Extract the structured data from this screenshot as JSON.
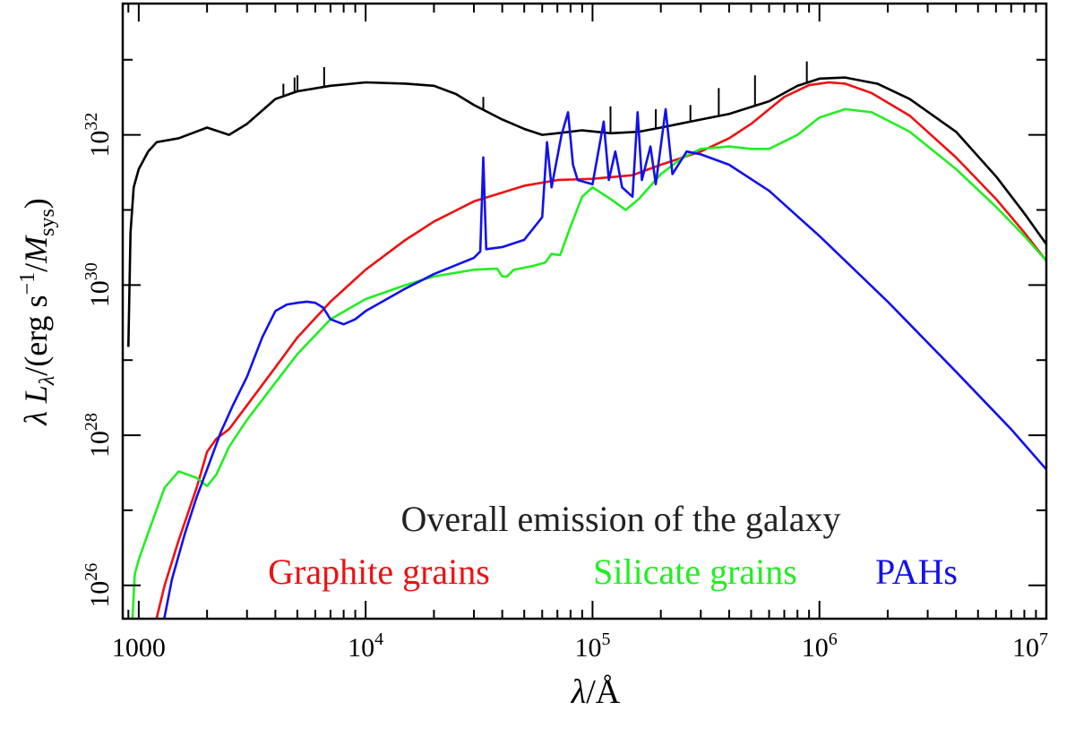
{
  "chart_data": {
    "type": "line",
    "title": "",
    "xlabel": {
      "sym": "λ",
      "unit": "Å"
    },
    "ylabel": {
      "sym": "λ",
      "L": "L",
      "sub": "λ",
      "mid": "/(erg s",
      "exp": "−1",
      "end": "/",
      "M": "M",
      "msub": "sys",
      "close": ")"
    },
    "xscale": "log",
    "yscale": "log",
    "xlim": [
      850,
      10000000
    ],
    "ylim": [
      3.6e+25,
      5.6e+33
    ],
    "grid": false,
    "x_ticks": [
      {
        "value": 1000,
        "label": "1000"
      },
      {
        "value": 10000,
        "base": "10",
        "exp": "4"
      },
      {
        "value": 100000,
        "base": "10",
        "exp": "5"
      },
      {
        "value": 1000000,
        "base": "10",
        "exp": "6"
      },
      {
        "value": 10000000,
        "base": "10",
        "exp": "7"
      }
    ],
    "y_ticks": [
      {
        "value": 1e+26,
        "base": "10",
        "exp": "26"
      },
      {
        "value": 1e+28,
        "base": "10",
        "exp": "28"
      },
      {
        "value": 1e+30,
        "base": "10",
        "exp": "30"
      },
      {
        "value": 1e+32,
        "base": "10",
        "exp": "32"
      }
    ],
    "series": [
      {
        "name": "Overall emission of the galaxy",
        "color": "#000000",
        "width": 2.6,
        "points": [
          [
            900,
            1.5e+29
          ],
          [
            920,
            5e+30
          ],
          [
            950,
            2e+31
          ],
          [
            1000,
            3.5e+31
          ],
          [
            1100,
            6e+31
          ],
          [
            1200,
            8e+31
          ],
          [
            1500,
            9e+31
          ],
          [
            2000,
            1.25e+32
          ],
          [
            2500,
            1e+32
          ],
          [
            3000,
            1.4e+32
          ],
          [
            4000,
            3e+32
          ],
          [
            5000,
            3.8e+32
          ],
          [
            7000,
            4.5e+32
          ],
          [
            10000,
            5e+32
          ],
          [
            15000,
            4.8e+32
          ],
          [
            20000,
            4.5e+32
          ],
          [
            25000,
            3.5e+32
          ],
          [
            30000,
            2.5e+32
          ],
          [
            40000,
            1.6e+32
          ],
          [
            50000,
            1.2e+32
          ],
          [
            60000,
            1e+32
          ],
          [
            70000,
            1.05e+32
          ],
          [
            90000,
            1.15e+32
          ],
          [
            120000,
            1.05e+32
          ],
          [
            160000,
            1.1e+32
          ],
          [
            200000,
            1.25e+32
          ],
          [
            300000,
            1.6e+32
          ],
          [
            400000,
            1.9e+32
          ],
          [
            600000,
            2.8e+32
          ],
          [
            800000,
            4.5e+32
          ],
          [
            1000000,
            5.6e+32
          ],
          [
            1300000,
            5.8e+32
          ],
          [
            1800000,
            4.8e+32
          ],
          [
            2500000,
            3e+32
          ],
          [
            4000000,
            1.1e+32
          ],
          [
            6000000,
            2.8e+31
          ],
          [
            8000000,
            9e+30
          ],
          [
            10000000,
            3.5e+30
          ]
        ],
        "spikes": [
          [
            6563,
            8e+32
          ],
          [
            4861,
            5.8e+32
          ],
          [
            5007,
            6.2e+32
          ],
          [
            4340,
            4.8e+32
          ],
          [
            33000,
            3.2e+32
          ],
          [
            120000,
            2.4e+32
          ],
          [
            190000,
            2.2e+32
          ],
          [
            270000,
            2.5e+32
          ],
          [
            360000,
            4.2e+32
          ],
          [
            520000,
            6.2e+32
          ],
          [
            880000,
            9.5e+32
          ]
        ]
      },
      {
        "name": "Graphite grains",
        "color": "#ee1111",
        "width": 2.6,
        "points": [
          [
            1180,
            3e+25
          ],
          [
            1300,
            1e+26
          ],
          [
            1500,
            4e+26
          ],
          [
            1800,
            2e+27
          ],
          [
            2000,
            6e+27
          ],
          [
            2200,
            9e+27
          ],
          [
            2500,
            1.2e+28
          ],
          [
            3000,
            2.5e+28
          ],
          [
            4000,
            8e+28
          ],
          [
            5000,
            2e+29
          ],
          [
            7000,
            6e+29
          ],
          [
            10000,
            1.6e+30
          ],
          [
            15000,
            4e+30
          ],
          [
            20000,
            7e+30
          ],
          [
            30000,
            1.3e+31
          ],
          [
            50000,
            2.1e+31
          ],
          [
            70000,
            2.5e+31
          ],
          [
            100000,
            2.6e+31
          ],
          [
            150000,
            2.9e+31
          ],
          [
            200000,
            4e+31
          ],
          [
            300000,
            6e+31
          ],
          [
            400000,
            9e+31
          ],
          [
            500000,
            1.4e+32
          ],
          [
            700000,
            3.2e+32
          ],
          [
            900000,
            4.6e+32
          ],
          [
            1100000,
            5e+32
          ],
          [
            1300000,
            4.8e+32
          ],
          [
            1700000,
            3.6e+32
          ],
          [
            2500000,
            1.8e+32
          ],
          [
            4000000,
            5e+31
          ],
          [
            6000000,
            1.4e+31
          ],
          [
            8000000,
            5e+30
          ],
          [
            10000000,
            2.1e+30
          ]
        ]
      },
      {
        "name": "Silicate grains",
        "color": "#22ee22",
        "width": 2.6,
        "points": [
          [
            930,
            2e+25
          ],
          [
            960,
            1.4e+26
          ],
          [
            1000,
            2.2e+26
          ],
          [
            1100,
            5e+26
          ],
          [
            1300,
            2e+27
          ],
          [
            1500,
            3.3e+27
          ],
          [
            1800,
            2.7e+27
          ],
          [
            2000,
            2.1e+27
          ],
          [
            2200,
            3e+27
          ],
          [
            2500,
            7e+27
          ],
          [
            3000,
            1.6e+28
          ],
          [
            4000,
            5e+28
          ],
          [
            5000,
            1.2e+29
          ],
          [
            7000,
            3.5e+29
          ],
          [
            10000,
            6.5e+29
          ],
          [
            15000,
            1e+30
          ],
          [
            20000,
            1.3e+30
          ],
          [
            30000,
            1.6e+30
          ],
          [
            38000,
            1.65e+30
          ],
          [
            40000,
            1.3e+30
          ],
          [
            42000,
            1.3e+30
          ],
          [
            45000,
            1.6e+30
          ],
          [
            55000,
            1.8e+30
          ],
          [
            62000,
            2e+30
          ],
          [
            66000,
            2.6e+30
          ],
          [
            72000,
            2.5e+30
          ],
          [
            80000,
            6e+30
          ],
          [
            90000,
            1.5e+31
          ],
          [
            100000,
            2e+31
          ],
          [
            120000,
            1.4e+31
          ],
          [
            140000,
            1e+31
          ],
          [
            160000,
            1.4e+31
          ],
          [
            200000,
            3e+31
          ],
          [
            250000,
            5e+31
          ],
          [
            300000,
            6.5e+31
          ],
          [
            400000,
            7e+31
          ],
          [
            500000,
            6.5e+31
          ],
          [
            600000,
            6.5e+31
          ],
          [
            800000,
            1e+32
          ],
          [
            1000000,
            1.7e+32
          ],
          [
            1300000,
            2.2e+32
          ],
          [
            1700000,
            2e+32
          ],
          [
            2500000,
            1.1e+32
          ],
          [
            4000000,
            3.5e+31
          ],
          [
            6000000,
            1.1e+31
          ],
          [
            8000000,
            4.5e+30
          ],
          [
            10000000,
            2.1e+30
          ]
        ]
      },
      {
        "name": "PAHs",
        "color": "#1111ee",
        "width": 2.6,
        "points": [
          [
            1280,
            3e+25
          ],
          [
            1400,
            1.2e+26
          ],
          [
            1600,
            5e+26
          ],
          [
            1800,
            1.5e+27
          ],
          [
            2000,
            3.5e+27
          ],
          [
            2300,
            1.1e+28
          ],
          [
            2600,
            2.5e+28
          ],
          [
            3000,
            6e+28
          ],
          [
            3500,
            2e+29
          ],
          [
            4000,
            4.5e+29
          ],
          [
            4500,
            5.5e+29
          ],
          [
            5000,
            5.8e+29
          ],
          [
            5500,
            6e+29
          ],
          [
            6000,
            5.8e+29
          ],
          [
            6500,
            5e+29
          ],
          [
            7000,
            3.5e+29
          ],
          [
            8000,
            3e+29
          ],
          [
            9000,
            3.5e+29
          ],
          [
            10000,
            4.5e+29
          ],
          [
            15000,
            9e+29
          ],
          [
            20000,
            1.4e+30
          ],
          [
            30000,
            2.3e+30
          ],
          [
            32000,
            2.8e+30
          ],
          [
            33000,
            5e+31
          ],
          [
            34000,
            3e+30
          ],
          [
            40000,
            3.2e+30
          ],
          [
            50000,
            4e+30
          ],
          [
            60000,
            8e+30
          ],
          [
            63000,
            8e+31
          ],
          [
            66000,
            2e+31
          ],
          [
            73000,
            1e+32
          ],
          [
            78000,
            2e+32
          ],
          [
            82000,
            4e+31
          ],
          [
            86000,
            2.5e+31
          ],
          [
            100000,
            2.2e+31
          ],
          [
            112000,
            1.5e+32
          ],
          [
            118000,
            2.5e+31
          ],
          [
            126000,
            6e+31
          ],
          [
            135000,
            2e+31
          ],
          [
            150000,
            1.5e+31
          ],
          [
            158000,
            2e+32
          ],
          [
            165000,
            2.5e+31
          ],
          [
            180000,
            7e+31
          ],
          [
            190000,
            2.2e+31
          ],
          [
            210000,
            2.2e+32
          ],
          [
            225000,
            3e+31
          ],
          [
            260000,
            6e+31
          ],
          [
            300000,
            5.5e+31
          ],
          [
            400000,
            4e+31
          ],
          [
            600000,
            1.8e+31
          ],
          [
            1000000,
            4.5e+30
          ],
          [
            2000000,
            6e+29
          ],
          [
            4000000,
            7e+28
          ],
          [
            7000000,
            1.2e+28
          ],
          [
            10000000,
            3.5e+27
          ]
        ]
      }
    ],
    "legend": {
      "overall": {
        "label": "Overall emission of the galaxy",
        "color": "#222222"
      },
      "entries": [
        {
          "label": "Graphite grains",
          "color": "#ee1111"
        },
        {
          "label": "Silicate grains",
          "color": "#22ee22"
        },
        {
          "label": "PAHs",
          "color": "#1111ee"
        }
      ]
    }
  }
}
